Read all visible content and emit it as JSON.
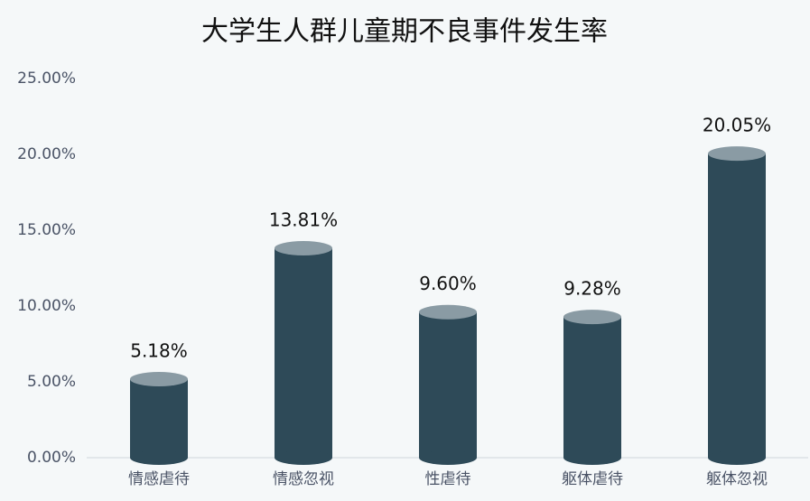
{
  "chart_data": {
    "type": "bar",
    "title": "大学生人群儿童期不良事件发生率",
    "categories": [
      "情感虐待",
      "情感忽视",
      "性虐待",
      "躯体虐待",
      "躯体忽视"
    ],
    "values": [
      5.18,
      13.81,
      9.6,
      9.28,
      20.05
    ],
    "value_labels": [
      "5.18%",
      "13.81%",
      "9.60%",
      "9.28%",
      "20.05%"
    ],
    "color": "#2e4a58",
    "ylim": [
      0,
      25
    ],
    "yticks": [
      {
        "value": 0,
        "label": "0.00%"
      },
      {
        "value": 5,
        "label": "5.00%"
      },
      {
        "value": 10,
        "label": "10.00%"
      },
      {
        "value": 15,
        "label": "15.00%"
      },
      {
        "value": 20,
        "label": "20.00%"
      },
      {
        "value": 25,
        "label": "25.00%"
      }
    ]
  }
}
